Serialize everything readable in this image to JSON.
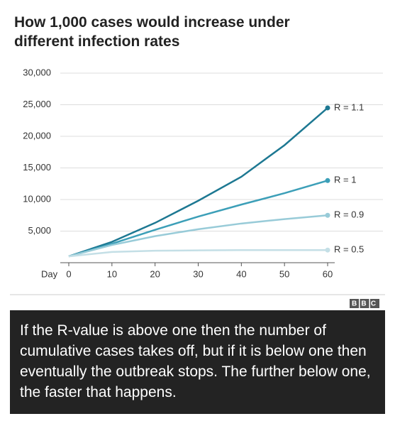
{
  "chart_data": {
    "type": "line",
    "title": "How 1,000 cases would increase under different infection rates",
    "x_label": "Day",
    "x": [
      0,
      10,
      20,
      30,
      40,
      50,
      60
    ],
    "series": [
      {
        "name": "R = 1.1",
        "color": "#1d7892",
        "values": [
          1000,
          3300,
          6300,
          9800,
          13600,
          18600,
          24500
        ]
      },
      {
        "name": "R = 1",
        "color": "#3c9fb8",
        "values": [
          1000,
          3000,
          5200,
          7300,
          9200,
          11000,
          13000
        ]
      },
      {
        "name": "R = 0.9",
        "color": "#98cbd8",
        "values": [
          1000,
          2800,
          4200,
          5300,
          6200,
          6900,
          7500
        ]
      },
      {
        "name": "R = 0.5",
        "color": "#c4dfe6",
        "values": [
          1000,
          1700,
          1900,
          1950,
          2000,
          2000,
          2000
        ]
      }
    ],
    "xlim": [
      0,
      60
    ],
    "xticks": [
      0,
      10,
      20,
      30,
      40,
      50,
      60
    ],
    "ylim": [
      0,
      30000
    ],
    "yticks": [
      {
        "value": 5000,
        "label": "5,000"
      },
      {
        "value": 10000,
        "label": "10,000"
      },
      {
        "value": 15000,
        "label": "15,000"
      },
      {
        "value": 20000,
        "label": "20,000"
      },
      {
        "value": 25000,
        "label": "25,000"
      },
      {
        "value": 30000,
        "label": "30,000"
      }
    ],
    "grid": true
  },
  "source": "BBC",
  "caption": "If the R-value is above one then the number of cumulative cases takes off, but if it is below one then eventually the outbreak stops. The further below one, the faster that happens."
}
